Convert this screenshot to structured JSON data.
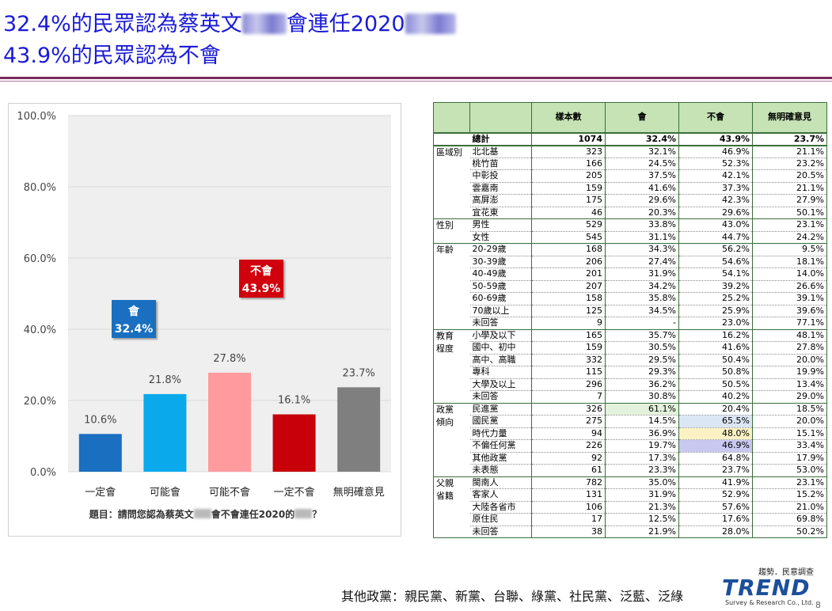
{
  "header": {
    "line1_pre": "32.4%的民眾認為蔡英文",
    "line1_mid": "會連任2020",
    "line2": "43.9%的民眾認為不會"
  },
  "chart_data": {
    "type": "bar",
    "categories": [
      "一定會",
      "可能會",
      "可能不會",
      "一定不會",
      "無明確意見"
    ],
    "values": [
      10.6,
      21.8,
      27.8,
      16.1,
      23.7
    ],
    "value_labels": [
      "10.6%",
      "21.8%",
      "27.8%",
      "16.1%",
      "23.7%"
    ],
    "colors": [
      "#1a6fc0",
      "#0aa9ec",
      "#ff9a9e",
      "#c8000a",
      "#7f7f7f"
    ],
    "ylim": [
      0,
      100
    ],
    "yticks": [
      0,
      20,
      40,
      60,
      80,
      100
    ],
    "ytick_labels": [
      "0.0%",
      "20.0%",
      "40.0%",
      "60.0%",
      "80.0%",
      "100.0%"
    ],
    "callouts": [
      {
        "label": "會",
        "value": "32.4%",
        "color": "#1a6fc0"
      },
      {
        "label": "不會",
        "value": "43.9%",
        "color": "#d0000c"
      }
    ],
    "question_pre": "題目：請問您認為蔡英文",
    "question_post": "會不會連任2020的",
    "question_end": "？"
  },
  "table": {
    "headers": [
      "",
      "",
      "樣本數",
      "會",
      "不會",
      "無明確意見"
    ],
    "total": {
      "label": "總計",
      "values": [
        "1074",
        "32.4%",
        "43.9%",
        "23.7%"
      ]
    },
    "groups": [
      {
        "name": "區域別",
        "rows": [
          {
            "label": "北北基",
            "values": [
              "323",
              "32.1%",
              "46.9%",
              "21.1%"
            ]
          },
          {
            "label": "桃竹苗",
            "values": [
              "166",
              "24.5%",
              "52.3%",
              "23.2%"
            ]
          },
          {
            "label": "中彰投",
            "values": [
              "205",
              "37.5%",
              "42.1%",
              "20.5%"
            ]
          },
          {
            "label": "雲嘉南",
            "values": [
              "159",
              "41.6%",
              "37.3%",
              "21.1%"
            ]
          },
          {
            "label": "高屏澎",
            "values": [
              "175",
              "29.6%",
              "42.3%",
              "27.9%"
            ]
          },
          {
            "label": "宜花東",
            "values": [
              "46",
              "20.3%",
              "29.6%",
              "50.1%"
            ]
          }
        ]
      },
      {
        "name": "性別",
        "rows": [
          {
            "label": "男性",
            "values": [
              "529",
              "33.8%",
              "43.0%",
              "23.1%"
            ]
          },
          {
            "label": "女性",
            "values": [
              "545",
              "31.1%",
              "44.7%",
              "24.2%"
            ]
          }
        ]
      },
      {
        "name": "年齡",
        "rows": [
          {
            "label": "20-29歲",
            "values": [
              "168",
              "34.3%",
              "56.2%",
              "9.5%"
            ]
          },
          {
            "label": "30-39歲",
            "values": [
              "206",
              "27.4%",
              "54.6%",
              "18.1%"
            ]
          },
          {
            "label": "40-49歲",
            "values": [
              "201",
              "31.9%",
              "54.1%",
              "14.0%"
            ]
          },
          {
            "label": "50-59歲",
            "values": [
              "207",
              "34.2%",
              "39.2%",
              "26.6%"
            ]
          },
          {
            "label": "60-69歲",
            "values": [
              "158",
              "35.8%",
              "25.2%",
              "39.1%"
            ]
          },
          {
            "label": "70歲以上",
            "values": [
              "125",
              "34.5%",
              "25.9%",
              "39.6%"
            ]
          },
          {
            "label": "未回答",
            "values": [
              "9",
              "-",
              "23.0%",
              "77.1%"
            ]
          }
        ]
      },
      {
        "name": "教育\n程度",
        "rows": [
          {
            "label": "小學及以下",
            "values": [
              "165",
              "35.7%",
              "16.2%",
              "48.1%"
            ]
          },
          {
            "label": "國中、初中",
            "values": [
              "159",
              "30.5%",
              "41.6%",
              "27.8%"
            ]
          },
          {
            "label": "高中、高職",
            "values": [
              "332",
              "29.5%",
              "50.4%",
              "20.0%"
            ]
          },
          {
            "label": "專科",
            "values": [
              "115",
              "29.3%",
              "50.8%",
              "19.9%"
            ]
          },
          {
            "label": "大學及以上",
            "values": [
              "296",
              "36.2%",
              "50.5%",
              "13.4%"
            ]
          },
          {
            "label": "未回答",
            "values": [
              "7",
              "30.8%",
              "40.2%",
              "29.0%"
            ]
          }
        ]
      },
      {
        "name": "政黨\n傾向",
        "rows": [
          {
            "label": "民進黨",
            "values": [
              "326",
              "61.1%",
              "20.4%",
              "18.5%"
            ],
            "hl": [
              1,
              "green"
            ]
          },
          {
            "label": "國民黨",
            "values": [
              "275",
              "14.5%",
              "65.5%",
              "20.0%"
            ],
            "hl": [
              2,
              "blue"
            ]
          },
          {
            "label": "時代力量",
            "values": [
              "94",
              "36.9%",
              "48.0%",
              "15.1%"
            ],
            "hl": [
              2,
              "yellow"
            ]
          },
          {
            "label": "不偏任何黨",
            "values": [
              "226",
              "19.7%",
              "46.9%",
              "33.4%"
            ],
            "hl": [
              2,
              "purple"
            ]
          },
          {
            "label": "其他政黨",
            "values": [
              "92",
              "17.3%",
              "64.8%",
              "17.9%"
            ]
          },
          {
            "label": "未表態",
            "values": [
              "61",
              "23.3%",
              "23.7%",
              "53.0%"
            ]
          }
        ]
      },
      {
        "name": "父親\n省籍",
        "rows": [
          {
            "label": "閩南人",
            "values": [
              "782",
              "35.0%",
              "41.9%",
              "23.1%"
            ]
          },
          {
            "label": "客家人",
            "values": [
              "131",
              "31.9%",
              "52.9%",
              "15.2%"
            ]
          },
          {
            "label": "大陸各省市",
            "values": [
              "106",
              "21.3%",
              "57.6%",
              "21.0%"
            ]
          },
          {
            "label": "原住民",
            "values": [
              "17",
              "12.5%",
              "17.6%",
              "69.8%"
            ]
          },
          {
            "label": "未回答",
            "values": [
              "38",
              "21.9%",
              "28.0%",
              "50.2%"
            ]
          }
        ]
      }
    ]
  },
  "footer": {
    "note": "其他政黨：親民黨、新黨、台聯、綠黨、社民黨、泛藍、泛綠",
    "logo_small": "趨勢．民意調查",
    "logo_main": "TREND",
    "logo_sub": "Survey & Research Co., Ltd.",
    "page": "8"
  }
}
